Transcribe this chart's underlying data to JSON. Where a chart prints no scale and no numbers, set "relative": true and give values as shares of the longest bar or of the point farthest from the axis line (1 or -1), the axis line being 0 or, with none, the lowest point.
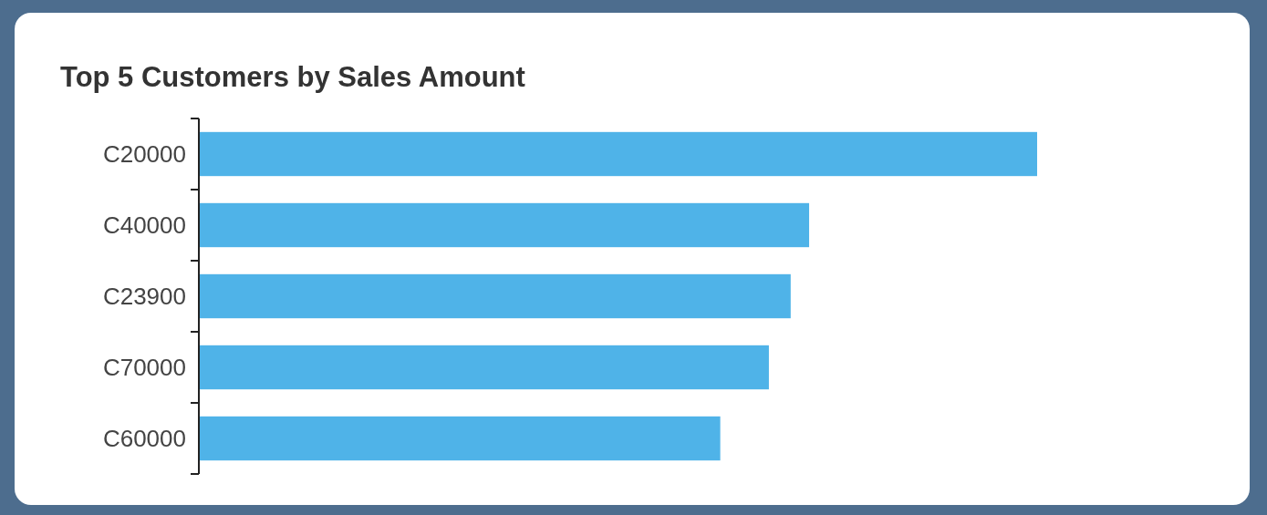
{
  "chart_data": {
    "type": "bar",
    "orientation": "horizontal",
    "relative": true,
    "title": "Top 5 Customers by Sales Amount",
    "categories": [
      "C20000",
      "C40000",
      "C23900",
      "C70000",
      "C60000"
    ],
    "values": [
      1,
      0.728,
      0.706,
      0.68,
      0.622
    ],
    "color": "#4fb3e8"
  }
}
